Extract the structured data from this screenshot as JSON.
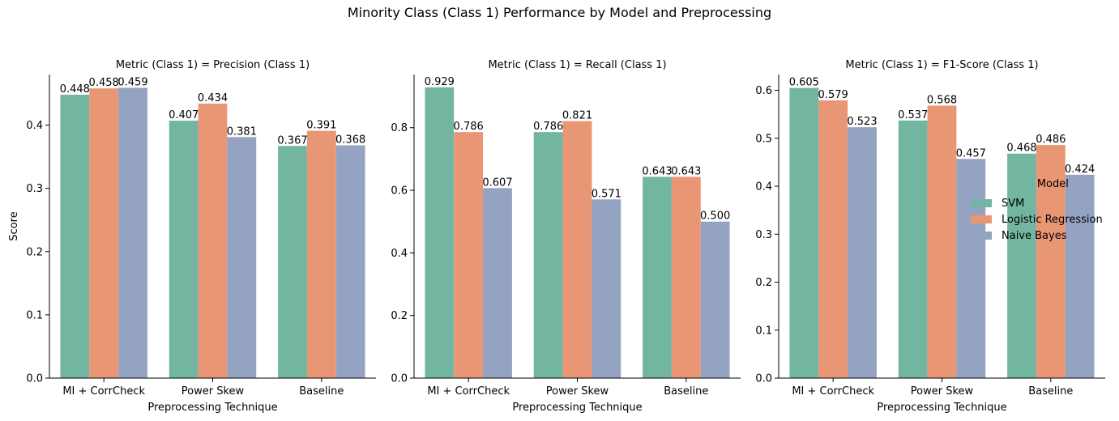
{
  "colors": {
    "SVM": "#72b6a1",
    "Logistic Regression": "#e99675",
    "Naive Bayes": "#95a3c3"
  },
  "chart_data": {
    "type": "bar",
    "title": "Minority Class (Class 1) Performance by Model and Preprocessing",
    "categories": [
      "MI + CorrCheck",
      "Power Skew",
      "Baseline"
    ],
    "xlabel": "Preprocessing Technique",
    "ylabel": "Score",
    "legend": {
      "title": "Model",
      "placement": "right",
      "entries": [
        "SVM",
        "Logistic Regression",
        "Naive Bayes"
      ]
    },
    "panels": [
      {
        "title": "Metric (Class 1) = Precision (Class 1)",
        "ylim": [
          0,
          0.48
        ],
        "yticks": [
          "0.0",
          "0.1",
          "0.2",
          "0.3",
          "0.4"
        ],
        "series": [
          {
            "name": "SVM",
            "values": [
              0.448,
              0.407,
              0.367
            ],
            "labels": [
              "0.448",
              "0.407",
              "0.367"
            ]
          },
          {
            "name": "Logistic Regression",
            "values": [
              0.458,
              0.434,
              0.391
            ],
            "labels": [
              "0.458",
              "0.434",
              "0.391"
            ]
          },
          {
            "name": "Naive Bayes",
            "values": [
              0.459,
              0.381,
              0.368
            ],
            "labels": [
              "0.459",
              "0.381",
              "0.368"
            ]
          }
        ]
      },
      {
        "title": "Metric (Class 1) = Recall (Class 1)",
        "ylim": [
          0,
          0.97
        ],
        "yticks": [
          "0.0",
          "0.2",
          "0.4",
          "0.6",
          "0.8"
        ],
        "series": [
          {
            "name": "SVM",
            "values": [
              0.929,
              0.786,
              0.643
            ],
            "labels": [
              "0.929",
              "0.786",
              "0.643"
            ]
          },
          {
            "name": "Logistic Regression",
            "values": [
              0.786,
              0.821,
              0.643
            ],
            "labels": [
              "0.786",
              "0.821",
              "0.643"
            ]
          },
          {
            "name": "Naive Bayes",
            "values": [
              0.607,
              0.571,
              0.5
            ],
            "labels": [
              "0.607",
              "0.571",
              "0.500"
            ]
          }
        ]
      },
      {
        "title": "Metric (Class 1) = F1-Score (Class 1)",
        "ylim": [
          0,
          0.633
        ],
        "yticks": [
          "0.0",
          "0.1",
          "0.2",
          "0.3",
          "0.4",
          "0.5",
          "0.6"
        ],
        "series": [
          {
            "name": "SVM",
            "values": [
              0.605,
              0.537,
              0.468
            ],
            "labels": [
              "0.605",
              "0.537",
              "0.468"
            ]
          },
          {
            "name": "Logistic Regression",
            "values": [
              0.579,
              0.568,
              0.486
            ],
            "labels": [
              "0.579",
              "0.568",
              "0.486"
            ]
          },
          {
            "name": "Naive Bayes",
            "values": [
              0.523,
              0.457,
              0.424
            ],
            "labels": [
              "0.523",
              "0.457",
              "0.424"
            ]
          }
        ]
      }
    ]
  }
}
